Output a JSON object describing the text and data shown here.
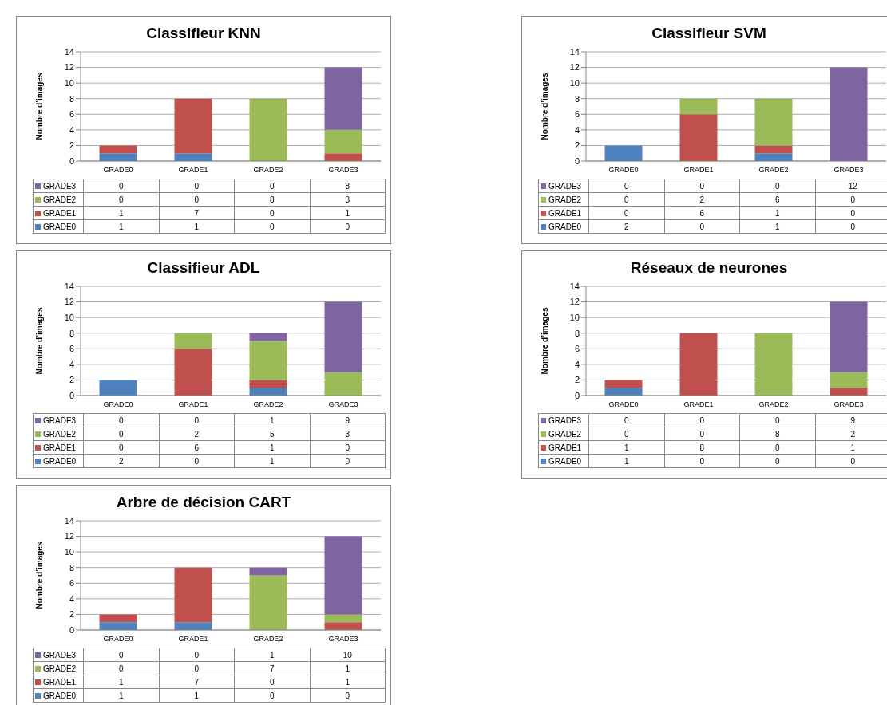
{
  "chart_data": [
    {
      "type": "bar",
      "title": "Classifieur KNN",
      "ylabel": "Nombre d’images",
      "categories": [
        "GRADE0",
        "GRADE1",
        "GRADE2",
        "GRADE3"
      ],
      "stacked": true,
      "ylim": [
        0,
        14
      ],
      "yticks": [
        0,
        2,
        4,
        6,
        8,
        10,
        12,
        14
      ],
      "grid": "y",
      "legend": "bottom",
      "data_labels": true,
      "series": [
        {
          "name": "GRADE0",
          "color": "#4f81bd",
          "values": [
            1,
            1,
            0,
            0
          ]
        },
        {
          "name": "GRADE1",
          "color": "#c0504d",
          "values": [
            1,
            7,
            0,
            1
          ]
        },
        {
          "name": "GRADE2",
          "color": "#9bbb59",
          "values": [
            0,
            0,
            8,
            3
          ]
        },
        {
          "name": "GRADE3",
          "color": "#8064a2",
          "values": [
            0,
            0,
            0,
            8
          ]
        }
      ]
    },
    {
      "type": "bar",
      "title": "Classifieur SVM",
      "ylabel": "Nombre d’images",
      "categories": [
        "GRADE0",
        "GRADE1",
        "GRADE2",
        "GRADE3"
      ],
      "stacked": true,
      "ylim": [
        0,
        14
      ],
      "yticks": [
        0,
        2,
        4,
        6,
        8,
        10,
        12,
        14
      ],
      "grid": "y",
      "legend": "bottom",
      "data_labels": true,
      "series": [
        {
          "name": "GRADE0",
          "color": "#4f81bd",
          "values": [
            2,
            0,
            1,
            0
          ]
        },
        {
          "name": "GRADE1",
          "color": "#c0504d",
          "values": [
            0,
            6,
            1,
            0
          ]
        },
        {
          "name": "GRADE2",
          "color": "#9bbb59",
          "values": [
            0,
            2,
            6,
            0
          ]
        },
        {
          "name": "GRADE3",
          "color": "#8064a2",
          "values": [
            0,
            0,
            0,
            12
          ]
        }
      ]
    },
    {
      "type": "bar",
      "title": "Classifieur ADL",
      "ylabel": "Nombre d’images",
      "categories": [
        "GRADE0",
        "GRADE1",
        "GRADE2",
        "GRADE3"
      ],
      "stacked": true,
      "ylim": [
        0,
        14
      ],
      "yticks": [
        0,
        2,
        4,
        6,
        8,
        10,
        12,
        14
      ],
      "grid": "y",
      "legend": "bottom",
      "data_labels": true,
      "series": [
        {
          "name": "GRADE0",
          "color": "#4f81bd",
          "values": [
            2,
            0,
            1,
            0
          ]
        },
        {
          "name": "GRADE1",
          "color": "#c0504d",
          "values": [
            0,
            6,
            1,
            0
          ]
        },
        {
          "name": "GRADE2",
          "color": "#9bbb59",
          "values": [
            0,
            2,
            5,
            3
          ]
        },
        {
          "name": "GRADE3",
          "color": "#8064a2",
          "values": [
            0,
            0,
            1,
            9
          ]
        }
      ]
    },
    {
      "type": "bar",
      "title": "Réseaux de neurones",
      "ylabel": "Nombre d’images",
      "categories": [
        "GRADE0",
        "GRADE1",
        "GRADE2",
        "GRADE3"
      ],
      "stacked": true,
      "ylim": [
        0,
        14
      ],
      "yticks": [
        0,
        2,
        4,
        6,
        8,
        10,
        12,
        14
      ],
      "grid": "y",
      "legend": "bottom",
      "data_labels": true,
      "series": [
        {
          "name": "GRADE0",
          "color": "#4f81bd",
          "values": [
            1,
            0,
            0,
            0
          ]
        },
        {
          "name": "GRADE1",
          "color": "#c0504d",
          "values": [
            1,
            8,
            0,
            1
          ]
        },
        {
          "name": "GRADE2",
          "color": "#9bbb59",
          "values": [
            0,
            0,
            8,
            2
          ]
        },
        {
          "name": "GRADE3",
          "color": "#8064a2",
          "values": [
            0,
            0,
            0,
            9
          ]
        }
      ]
    },
    {
      "type": "bar",
      "title": "Arbre de décision CART",
      "ylabel": "Nombre d’images",
      "categories": [
        "GRADE0",
        "GRADE1",
        "GRADE2",
        "GRADE3"
      ],
      "stacked": true,
      "ylim": [
        0,
        14
      ],
      "yticks": [
        0,
        2,
        4,
        6,
        8,
        10,
        12,
        14
      ],
      "grid": "y",
      "legend": "bottom",
      "data_labels": true,
      "series": [
        {
          "name": "GRADE0",
          "color": "#4f81bd",
          "values": [
            1,
            1,
            0,
            0
          ]
        },
        {
          "name": "GRADE1",
          "color": "#c0504d",
          "values": [
            1,
            7,
            0,
            1
          ]
        },
        {
          "name": "GRADE2",
          "color": "#9bbb59",
          "values": [
            0,
            0,
            7,
            1
          ]
        },
        {
          "name": "GRADE3",
          "color": "#8064a2",
          "values": [
            0,
            0,
            1,
            10
          ]
        }
      ]
    }
  ]
}
